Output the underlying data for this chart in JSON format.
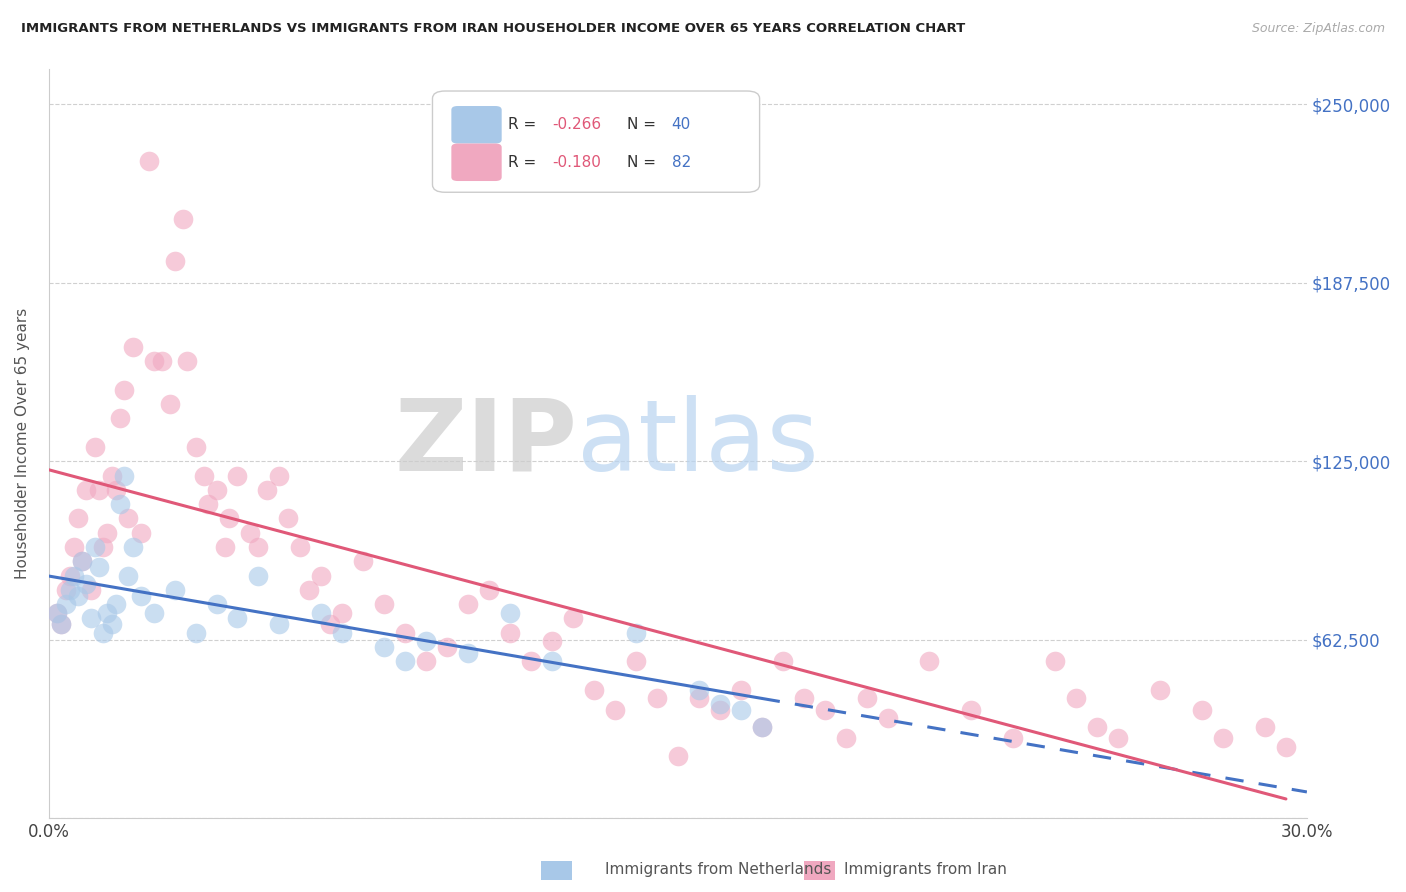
{
  "title": "IMMIGRANTS FROM NETHERLANDS VS IMMIGRANTS FROM IRAN HOUSEHOLDER INCOME OVER 65 YEARS CORRELATION CHART",
  "source": "Source: ZipAtlas.com",
  "ylabel": "Householder Income Over 65 years",
  "yticks": [
    0,
    62500,
    125000,
    187500,
    250000
  ],
  "ytick_labels": [
    "",
    "$62,500",
    "$125,000",
    "$187,500",
    "$250,000"
  ],
  "xlim": [
    0.0,
    0.3
  ],
  "ylim": [
    0,
    262500
  ],
  "legend_R_netherlands": "-0.266",
  "legend_N_netherlands": "40",
  "legend_R_iran": "-0.180",
  "legend_N_iran": "82",
  "netherlands_color": "#a8c8e8",
  "iran_color": "#f0a8c0",
  "netherlands_line_color": "#4472c4",
  "iran_line_color": "#e05878",
  "netherlands_scatter": [
    [
      0.002,
      72000
    ],
    [
      0.003,
      68000
    ],
    [
      0.004,
      75000
    ],
    [
      0.005,
      80000
    ],
    [
      0.006,
      85000
    ],
    [
      0.007,
      78000
    ],
    [
      0.008,
      90000
    ],
    [
      0.009,
      82000
    ],
    [
      0.01,
      70000
    ],
    [
      0.011,
      95000
    ],
    [
      0.012,
      88000
    ],
    [
      0.013,
      65000
    ],
    [
      0.014,
      72000
    ],
    [
      0.015,
      68000
    ],
    [
      0.016,
      75000
    ],
    [
      0.017,
      110000
    ],
    [
      0.018,
      120000
    ],
    [
      0.019,
      85000
    ],
    [
      0.02,
      95000
    ],
    [
      0.022,
      78000
    ],
    [
      0.025,
      72000
    ],
    [
      0.03,
      80000
    ],
    [
      0.035,
      65000
    ],
    [
      0.04,
      75000
    ],
    [
      0.045,
      70000
    ],
    [
      0.05,
      85000
    ],
    [
      0.055,
      68000
    ],
    [
      0.065,
      72000
    ],
    [
      0.07,
      65000
    ],
    [
      0.08,
      60000
    ],
    [
      0.085,
      55000
    ],
    [
      0.09,
      62000
    ],
    [
      0.1,
      58000
    ],
    [
      0.11,
      72000
    ],
    [
      0.12,
      55000
    ],
    [
      0.14,
      65000
    ],
    [
      0.155,
      45000
    ],
    [
      0.16,
      40000
    ],
    [
      0.165,
      38000
    ],
    [
      0.17,
      32000
    ]
  ],
  "iran_scatter": [
    [
      0.002,
      72000
    ],
    [
      0.003,
      68000
    ],
    [
      0.004,
      80000
    ],
    [
      0.005,
      85000
    ],
    [
      0.006,
      95000
    ],
    [
      0.007,
      105000
    ],
    [
      0.008,
      90000
    ],
    [
      0.009,
      115000
    ],
    [
      0.01,
      80000
    ],
    [
      0.011,
      130000
    ],
    [
      0.012,
      115000
    ],
    [
      0.013,
      95000
    ],
    [
      0.014,
      100000
    ],
    [
      0.015,
      120000
    ],
    [
      0.016,
      115000
    ],
    [
      0.017,
      140000
    ],
    [
      0.018,
      150000
    ],
    [
      0.019,
      105000
    ],
    [
      0.02,
      165000
    ],
    [
      0.022,
      100000
    ],
    [
      0.024,
      230000
    ],
    [
      0.025,
      160000
    ],
    [
      0.027,
      160000
    ],
    [
      0.029,
      145000
    ],
    [
      0.03,
      195000
    ],
    [
      0.032,
      210000
    ],
    [
      0.033,
      160000
    ],
    [
      0.035,
      130000
    ],
    [
      0.037,
      120000
    ],
    [
      0.038,
      110000
    ],
    [
      0.04,
      115000
    ],
    [
      0.042,
      95000
    ],
    [
      0.043,
      105000
    ],
    [
      0.045,
      120000
    ],
    [
      0.048,
      100000
    ],
    [
      0.05,
      95000
    ],
    [
      0.052,
      115000
    ],
    [
      0.055,
      120000
    ],
    [
      0.057,
      105000
    ],
    [
      0.06,
      95000
    ],
    [
      0.062,
      80000
    ],
    [
      0.065,
      85000
    ],
    [
      0.067,
      68000
    ],
    [
      0.07,
      72000
    ],
    [
      0.075,
      90000
    ],
    [
      0.08,
      75000
    ],
    [
      0.085,
      65000
    ],
    [
      0.09,
      55000
    ],
    [
      0.095,
      60000
    ],
    [
      0.1,
      75000
    ],
    [
      0.105,
      80000
    ],
    [
      0.11,
      65000
    ],
    [
      0.115,
      55000
    ],
    [
      0.12,
      62000
    ],
    [
      0.125,
      70000
    ],
    [
      0.13,
      45000
    ],
    [
      0.135,
      38000
    ],
    [
      0.14,
      55000
    ],
    [
      0.145,
      42000
    ],
    [
      0.15,
      22000
    ],
    [
      0.155,
      42000
    ],
    [
      0.16,
      38000
    ],
    [
      0.165,
      45000
    ],
    [
      0.17,
      32000
    ],
    [
      0.175,
      55000
    ],
    [
      0.18,
      42000
    ],
    [
      0.185,
      38000
    ],
    [
      0.19,
      28000
    ],
    [
      0.195,
      42000
    ],
    [
      0.2,
      35000
    ],
    [
      0.21,
      55000
    ],
    [
      0.22,
      38000
    ],
    [
      0.23,
      28000
    ],
    [
      0.24,
      55000
    ],
    [
      0.245,
      42000
    ],
    [
      0.25,
      32000
    ],
    [
      0.255,
      28000
    ],
    [
      0.265,
      45000
    ],
    [
      0.275,
      38000
    ],
    [
      0.28,
      28000
    ],
    [
      0.29,
      32000
    ],
    [
      0.295,
      25000
    ]
  ]
}
